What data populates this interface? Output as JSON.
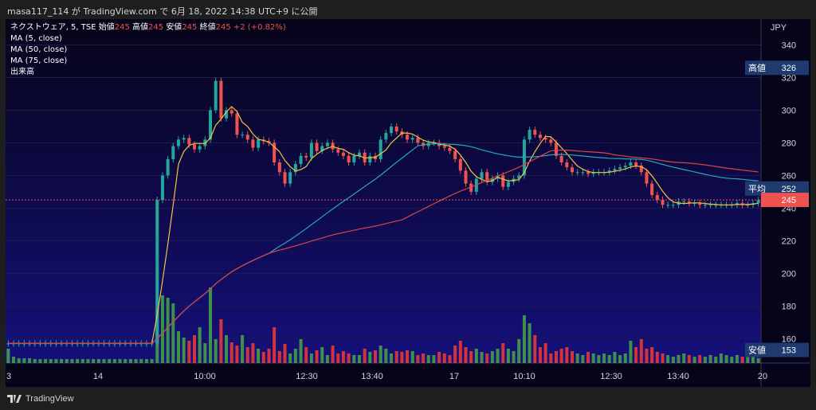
{
  "header": {
    "attribution": "masa117_114 が TradingView.com で 6月 18, 2022 14:38 UTC+9 に公開"
  },
  "legend": {
    "symbol": "ネクストウェア, 5, TSE",
    "open_label": "始値",
    "open": "245",
    "high_label": "高値",
    "high": "245",
    "low_label": "安値",
    "low": "245",
    "close_label": "終値",
    "close": "245",
    "change": "+2 (+0.82%)",
    "ma5": "MA (5, close)",
    "ma50": "MA (50, close)",
    "ma75": "MA (75, close)",
    "volume": "出来高"
  },
  "footer": {
    "brand": "TradingView"
  },
  "chart_data": {
    "type": "candlestick",
    "currency": "JPY",
    "ylim": [
      145,
      350
    ],
    "y_ticks": [
      160,
      180,
      200,
      220,
      240,
      260,
      280,
      300,
      320,
      340
    ],
    "x_ticks": [
      "3",
      "14",
      "10:00",
      "12:30",
      "13:40",
      "17",
      "10:10",
      "12:30",
      "13:40",
      "20"
    ],
    "price_tags": [
      {
        "label": "高値",
        "value": "326",
        "color": "#1e3a6e"
      },
      {
        "label": "平均",
        "value": "252",
        "color": "#1e3a6e"
      },
      {
        "label": "",
        "value": "245",
        "color": "#ef5350"
      },
      {
        "label": "安値",
        "value": "153",
        "color": "#1e3a6e"
      }
    ],
    "colors": {
      "up": "#26a69a",
      "down": "#ef5350",
      "vol_up": "#43a047",
      "vol_down": "#e53935",
      "ma5": "#f5c242",
      "ma50": "#26a6c4",
      "ma75": "#d94545"
    },
    "close_series_approx": [
      157,
      157,
      157,
      157,
      157,
      157,
      157,
      157,
      157,
      157,
      157,
      157,
      157,
      157,
      157,
      157,
      157,
      157,
      157,
      157,
      157,
      157,
      157,
      157,
      157,
      157,
      157,
      157,
      245,
      260,
      270,
      278,
      282,
      283,
      279,
      276,
      278,
      282,
      300,
      318,
      295,
      300,
      298,
      285,
      285,
      282,
      277,
      282,
      281,
      280,
      268,
      262,
      255,
      262,
      267,
      272,
      271,
      280,
      275,
      278,
      280,
      276,
      274,
      272,
      268,
      272,
      274,
      268,
      272,
      270,
      282,
      286,
      290,
      287,
      285,
      282,
      283,
      280,
      278,
      280,
      280,
      278,
      277,
      275,
      270,
      263,
      255,
      250,
      258,
      262,
      256,
      258,
      260,
      253,
      256,
      258,
      260,
      282,
      288,
      285,
      283,
      282,
      280,
      272,
      268,
      265,
      262,
      262,
      262,
      261,
      262,
      262,
      262,
      263,
      264,
      265,
      266,
      268,
      266,
      262,
      255,
      248,
      245,
      242,
      242,
      242,
      244,
      244,
      243,
      243,
      242,
      242,
      242,
      242,
      242,
      242,
      242,
      243,
      242,
      242,
      243,
      245
    ],
    "volume_series_approx": [
      18,
      8,
      6,
      6,
      6,
      5,
      5,
      5,
      5,
      5,
      5,
      5,
      5,
      5,
      5,
      5,
      5,
      5,
      5,
      5,
      5,
      5,
      5,
      5,
      5,
      5,
      5,
      5,
      70,
      85,
      82,
      75,
      40,
      32,
      28,
      35,
      45,
      25,
      95,
      30,
      55,
      35,
      26,
      22,
      35,
      20,
      25,
      18,
      14,
      18,
      45,
      15,
      24,
      12,
      18,
      30,
      20,
      12,
      16,
      20,
      10,
      22,
      12,
      15,
      12,
      10,
      10,
      18,
      14,
      16,
      22,
      18,
      12,
      15,
      14,
      16,
      15,
      10,
      12,
      10,
      10,
      14,
      12,
      10,
      22,
      28,
      20,
      15,
      18,
      14,
      12,
      15,
      18,
      25,
      18,
      15,
      30,
      60,
      50,
      35,
      20,
      25,
      12,
      15,
      18,
      20,
      15,
      12,
      10,
      14,
      12,
      10,
      12,
      10,
      14,
      10,
      12,
      28,
      20,
      30,
      18,
      20,
      14,
      12,
      10,
      8,
      10,
      12,
      10,
      8,
      10,
      8,
      10,
      8,
      12,
      10,
      8,
      10,
      8,
      10,
      8,
      6
    ]
  }
}
